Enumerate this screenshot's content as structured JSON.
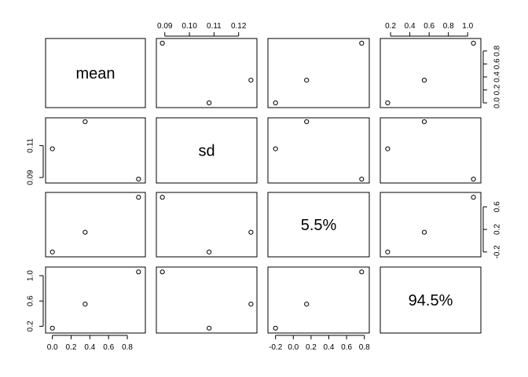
{
  "chart_data": {
    "type": "scatter",
    "title": "",
    "variables": [
      {
        "name": "mean",
        "values": [
          0.0,
          0.35,
          0.92
        ],
        "range": [
          -0.03,
          0.95
        ],
        "ticks": [
          0.0,
          0.2,
          0.4,
          0.6,
          0.8
        ],
        "tick_labels": [
          "0.0",
          "0.2",
          "0.4",
          "0.6",
          "0.8"
        ]
      },
      {
        "name": "sd",
        "values": [
          0.108,
          0.125,
          0.089
        ],
        "range": [
          0.0882,
          0.1258
        ],
        "ticks": [
          0.09,
          0.1,
          0.11,
          0.12
        ],
        "tick_labels": [
          "0.09",
          "0.10",
          "0.11",
          "0.12"
        ],
        "left_ticks": [
          0.09,
          0.11
        ],
        "left_tick_labels": [
          "0.09",
          "0.11"
        ]
      },
      {
        "name": "5.5%",
        "values": [
          -0.2,
          0.15,
          0.77
        ],
        "range": [
          -0.24,
          0.81
        ],
        "ticks": [
          -0.2,
          0.0,
          0.2,
          0.4,
          0.6,
          0.8
        ],
        "tick_labels": [
          "-0.2",
          "0.0",
          "0.2",
          "0.4",
          "0.6",
          "0.8"
        ],
        "right_ticks": [
          -0.2,
          0.2,
          0.6
        ],
        "right_tick_labels": [
          "-0.2",
          "0.2",
          "0.6"
        ]
      },
      {
        "name": "94.5%",
        "values": [
          0.17,
          0.55,
          1.06
        ],
        "range": [
          0.135,
          1.095
        ],
        "ticks": [
          0.2,
          0.4,
          0.6,
          0.8,
          1.0
        ],
        "tick_labels": [
          "0.2",
          "0.4",
          "0.6",
          "0.8",
          "1.0"
        ],
        "left_ticks": [
          0.2,
          0.6,
          1.0
        ],
        "left_tick_labels": [
          "0.2",
          "0.6",
          "1.0"
        ]
      }
    ],
    "axes": {
      "top": [
        {
          "var": 1,
          "ticks": "ticks"
        },
        {
          "var": 3,
          "ticks": "ticks"
        }
      ],
      "bottom": [
        {
          "var": 0,
          "ticks": "ticks"
        },
        {
          "var": 2,
          "ticks": "ticks"
        }
      ],
      "left": [
        {
          "var": 1,
          "ticks": "left_ticks"
        },
        {
          "var": 3,
          "ticks": "left_ticks"
        }
      ],
      "right": [
        {
          "var": 0,
          "ticks": "ticks"
        },
        {
          "var": 2,
          "ticks": "right_ticks"
        }
      ]
    },
    "grid": false,
    "legend": "none"
  }
}
